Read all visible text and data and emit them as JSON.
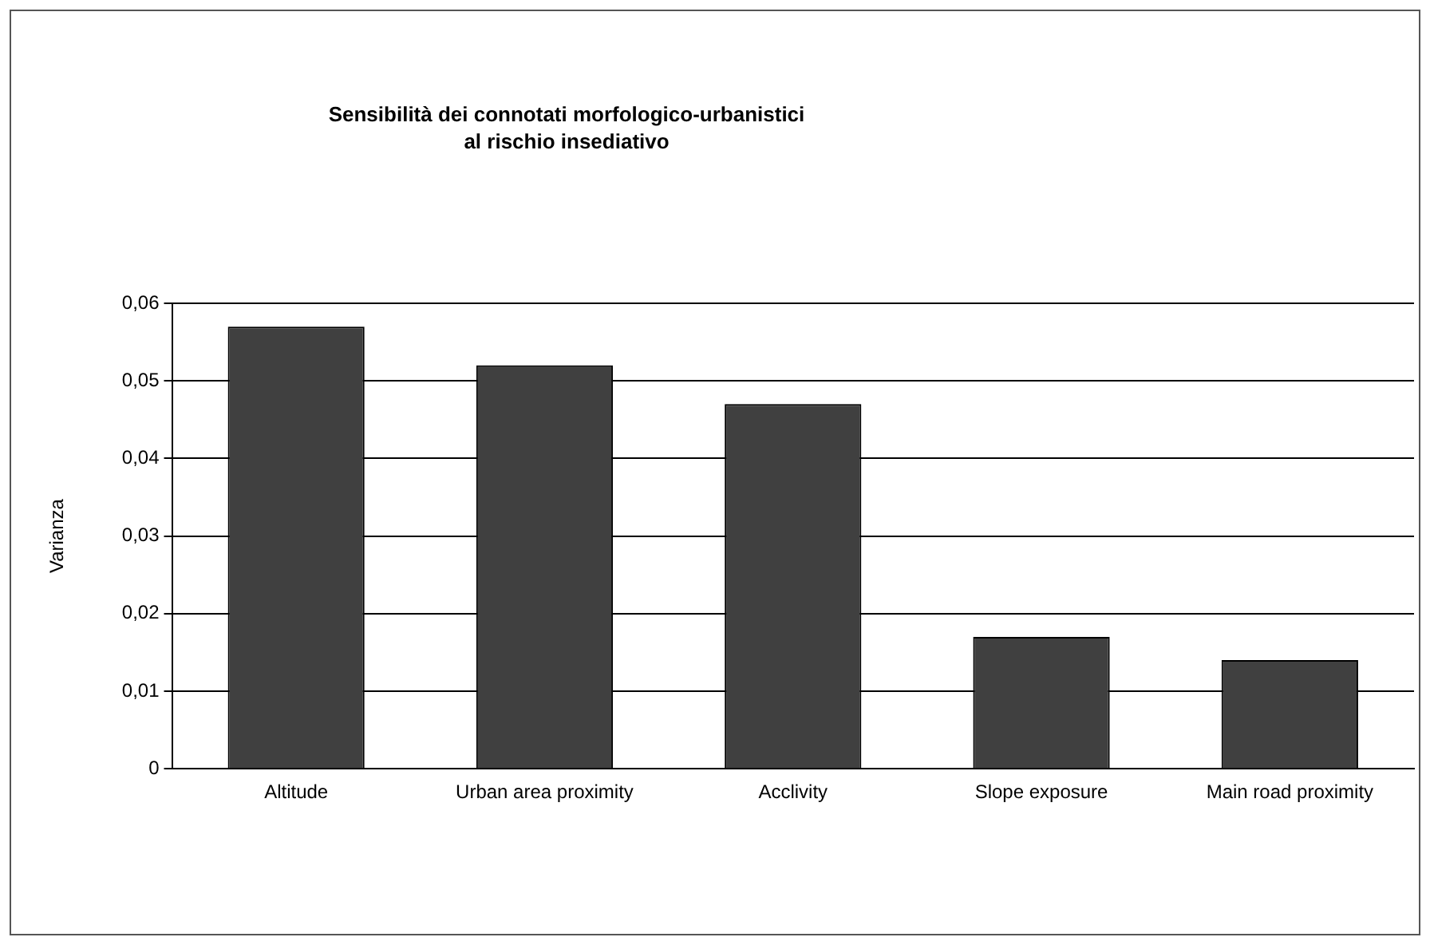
{
  "chart_data": {
    "type": "bar",
    "title": "Sensibilità dei connotati morfologico-urbanistici\nal rischio insediativo",
    "ylabel": "Varianza",
    "categories": [
      "Altitude",
      "Urban area proximity",
      "Acclivity",
      "Slope exposure",
      "Main road proximity"
    ],
    "values": [
      0.057,
      0.052,
      0.047,
      0.017,
      0.014
    ],
    "color": "#404040",
    "ylim": [
      0,
      0.06
    ],
    "yticks": [
      {
        "value": 0,
        "label": "0"
      },
      {
        "value": 0.01,
        "label": "0,01"
      },
      {
        "value": 0.02,
        "label": "0,02"
      },
      {
        "value": 0.03,
        "label": "0,03"
      },
      {
        "value": 0.04,
        "label": "0,04"
      },
      {
        "value": 0.05,
        "label": "0,05"
      },
      {
        "value": 0.06,
        "label": "0,06"
      }
    ],
    "grid": "y",
    "legend": false
  }
}
